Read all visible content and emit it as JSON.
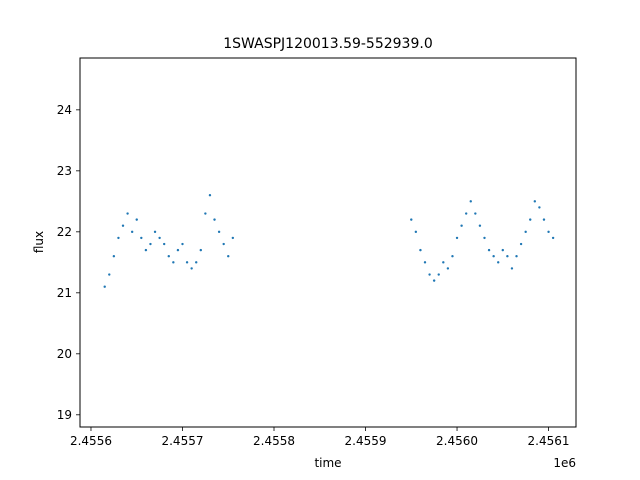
{
  "chart_data": {
    "type": "scatter",
    "title": "1SWASPJ120013.59-552939.0",
    "xlabel": "time",
    "ylabel": "flux",
    "offset_text": "1e6",
    "xlim": [
      2455588,
      2456130
    ],
    "ylim": [
      18.8,
      24.85
    ],
    "x_ticks": [
      2455600,
      2455700,
      2455800,
      2455900,
      2456000,
      2456100
    ],
    "x_tick_labels": [
      "2.4556",
      "2.4557",
      "2.4558",
      "2.4559",
      "2.4560",
      "2.4561"
    ],
    "y_ticks": [
      19,
      20,
      21,
      22,
      23,
      24
    ],
    "y_tick_labels": [
      "19",
      "20",
      "21",
      "22",
      "23",
      "24"
    ],
    "grid": false,
    "marker_color": "#1f77b4",
    "series": [
      {
        "x": [
          2455615,
          2455620,
          2455625,
          2455630,
          2455635,
          2455640,
          2455645,
          2455650,
          2455655,
          2455660,
          2455665,
          2455670,
          2455675,
          2455680,
          2455685,
          2455690,
          2455695,
          2455700,
          2455705,
          2455710,
          2455715,
          2455720,
          2455725,
          2455730,
          2455735,
          2455740,
          2455745,
          2455750,
          2455755
        ],
        "y": [
          21.1,
          21.3,
          21.6,
          21.9,
          22.1,
          22.3,
          22.0,
          22.2,
          21.9,
          21.7,
          21.8,
          22.0,
          21.9,
          21.8,
          21.6,
          21.5,
          21.7,
          21.8,
          21.5,
          21.4,
          21.5,
          21.7,
          22.3,
          22.6,
          22.2,
          22.0,
          21.8,
          21.6,
          21.9
        ]
      },
      {
        "x": [
          2455950,
          2455955,
          2455960,
          2455965,
          2455970,
          2455975,
          2455980,
          2455985,
          2455990,
          2455995,
          2456000,
          2456005,
          2456010,
          2456015,
          2456020,
          2456025,
          2456030,
          2456035,
          2456040,
          2456045,
          2456050,
          2456055,
          2456060,
          2456065,
          2456070,
          2456075,
          2456080,
          2456085,
          2456090,
          2456095,
          2456100,
          2456105
        ],
        "y": [
          22.2,
          22.0,
          21.7,
          21.5,
          21.3,
          21.2,
          21.3,
          21.5,
          21.4,
          21.6,
          21.9,
          22.1,
          22.3,
          22.5,
          22.3,
          22.1,
          21.9,
          21.7,
          21.6,
          21.5,
          21.7,
          21.6,
          21.4,
          21.6,
          21.8,
          22.0,
          22.2,
          22.5,
          22.4,
          22.2,
          22.0,
          21.9
        ]
      }
    ]
  }
}
